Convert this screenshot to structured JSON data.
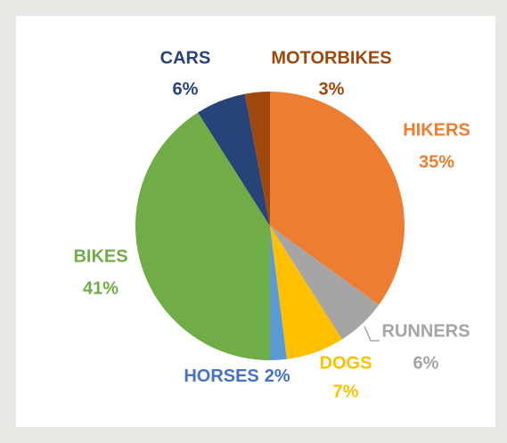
{
  "chart_data": {
    "type": "pie",
    "categories": [
      "HIKERS",
      "RUNNERS",
      "DOGS",
      "HORSES",
      "BIKES",
      "CARS",
      "MOTORBIKES"
    ],
    "values": [
      35,
      6,
      7,
      2,
      41,
      6,
      3
    ],
    "value_labels": [
      "35%",
      "6%",
      "7%",
      "2%",
      "41%",
      "6%",
      "3%"
    ],
    "colors": [
      "#ed7d31",
      "#a5a5a5",
      "#ffc000",
      "#5b9bd5",
      "#70ad47",
      "#264478",
      "#9e480e"
    ]
  }
}
